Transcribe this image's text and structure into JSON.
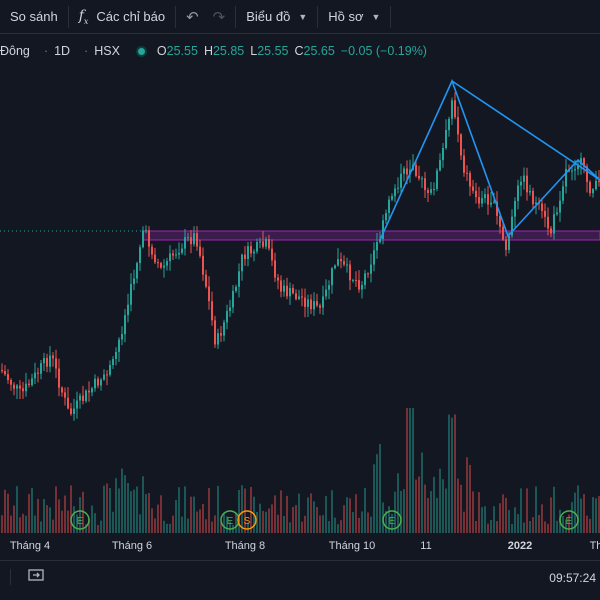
{
  "toolbar": {
    "compare_label": "So sánh",
    "indicators_label": "Các chỉ báo",
    "chart_label": "Biểu đồ",
    "profile_label": "Hồ sơ"
  },
  "legend": {
    "symbol": "Đông",
    "interval": "1D",
    "exchange": "HSX",
    "open_label": "O",
    "open": "25.55",
    "high_label": "H",
    "high": "25.85",
    "low_label": "L",
    "low": "25.55",
    "close_label": "C",
    "close": "25.65",
    "change": "−0.05 (−0.19%)",
    "up_color": "#26a69a",
    "down_color": "#ef5350"
  },
  "xaxis": {
    "labels": [
      "Tháng 4",
      "Tháng 6",
      "Tháng 8",
      "Tháng 10",
      "11",
      "2022",
      "Th"
    ]
  },
  "event_markers": [
    "E",
    "E",
    "S",
    "E",
    "E"
  ],
  "drawings": {
    "zone_color": "#9c27b0",
    "pattern_line_color": "#2196f3"
  },
  "status": {
    "time": "09:57:24"
  }
}
